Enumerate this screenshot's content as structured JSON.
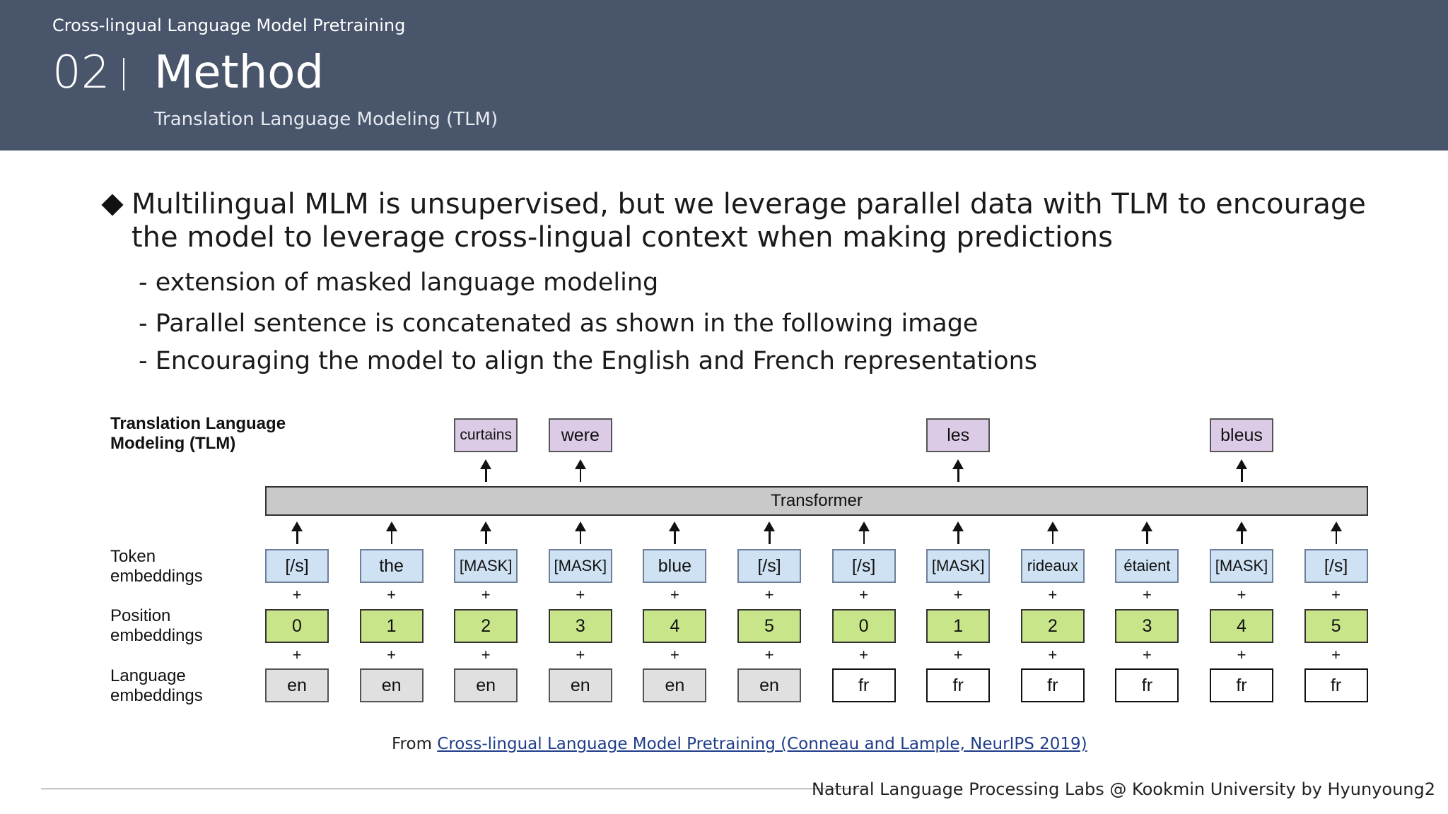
{
  "header": {
    "deck_title": "Cross-lingual Language Model Pretraining",
    "section_number": "02",
    "section_title": "Method",
    "section_subtitle": "Translation Language Modeling (TLM)"
  },
  "content": {
    "main_point": "Multilingual MLM is unsupervised, but we leverage parallel data with TLM to encourage the model to leverage cross-lingual context when making predictions",
    "sub_points": [
      "- extension of masked language modeling",
      "- Parallel sentence is concatenated as shown in the following image",
      "- Encouraging the model to align the English and French representations"
    ]
  },
  "diagram": {
    "title_line1": "Translation Language",
    "title_line2": "Modeling (TLM)",
    "transformer_label": "Transformer",
    "row_labels": {
      "token_1": "Token",
      "token_2": "embeddings",
      "position_1": "Position",
      "position_2": "embeddings",
      "language_1": "Language",
      "language_2": "embeddings"
    },
    "plus_sign": "+",
    "tokens": [
      "[/s]",
      "the",
      "[MASK]",
      "[MASK]",
      "blue",
      "[/s]",
      "[/s]",
      "[MASK]",
      "rideaux",
      "étaient",
      "[MASK]",
      "[/s]"
    ],
    "positions": [
      "0",
      "1",
      "2",
      "3",
      "4",
      "5",
      "0",
      "1",
      "2",
      "3",
      "4",
      "5"
    ],
    "languages": [
      "en",
      "en",
      "en",
      "en",
      "en",
      "en",
      "fr",
      "fr",
      "fr",
      "fr",
      "fr",
      "fr"
    ],
    "predictions": [
      "",
      "",
      "curtains",
      "were",
      "",
      "",
      "",
      "les",
      "",
      "",
      "bleus",
      ""
    ],
    "colors": {
      "token_fill": "#cfe2f3",
      "token_border": "#6d7f99",
      "position_fill": "#c8e58a",
      "position_border": "#333333",
      "lang_en_fill": "#e0e0e0",
      "lang_fr_fill": "#ffffff",
      "prediction_fill": "#dccbe6",
      "transformer_fill": "#c9c9c9"
    }
  },
  "source": {
    "prefix": "From ",
    "link_text": "Cross-lingual Language Model Pretraining (Conneau and Lample, NeurIPS 2019)"
  },
  "footer": {
    "text": "Natural Language Processing Labs @ Kookmin University by Hyunyoung2"
  }
}
